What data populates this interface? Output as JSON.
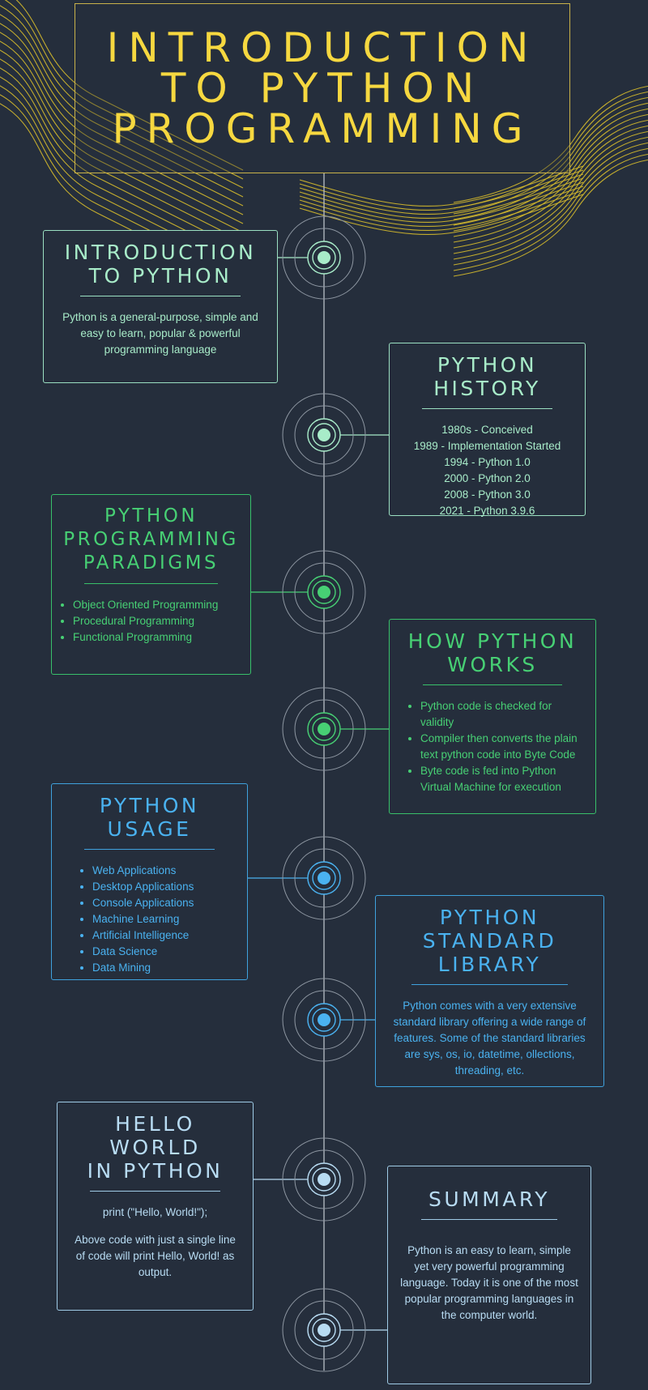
{
  "title": {
    "line1": "INTRODUCTION",
    "line2": "TO PYTHON",
    "line3": "PROGRAMMING"
  },
  "colors": {
    "background": "#252e3c",
    "title": "#f6d840",
    "light_green": "#a8ecc9",
    "green": "#47d074",
    "blue": "#4ab2f0",
    "sky": "#b8dcf3"
  },
  "sections": {
    "intro": {
      "title_line1": "INTRODUCTION",
      "title_line2": "TO PYTHON",
      "text": "Python is a general-purpose, simple and easy to learn, popular & powerful programming language"
    },
    "history": {
      "title_line1": "PYTHON",
      "title_line2": "HISTORY",
      "items": [
        "1980s - Conceived",
        "1989 - Implementation Started",
        "1994 - Python 1.0",
        "2000 - Python 2.0",
        "2008 - Python 3.0",
        "2021 - Python 3.9.6"
      ]
    },
    "paradigms": {
      "title_line1": "PYTHON",
      "title_line2": "PROGRAMMING",
      "title_line3": "PARADIGMS",
      "items": [
        "Object Oriented Programming",
        "Procedural Programming",
        "Functional Programming"
      ]
    },
    "works": {
      "title_line1": "HOW PYTHON",
      "title_line2": "WORKS",
      "items": [
        "Python code is checked for validity",
        "Compiler then converts the plain text python code into Byte Code",
        "Byte code is fed into Python Virtual Machine for execution"
      ]
    },
    "usage": {
      "title_line1": "PYTHON",
      "title_line2": "USAGE",
      "items": [
        "Web Applications",
        "Desktop Applications",
        "Console Applications",
        "Machine Learning",
        "Artificial Intelligence",
        "Data Science",
        "Data Mining"
      ]
    },
    "stdlib": {
      "title_line1": "PYTHON",
      "title_line2": "STANDARD",
      "title_line3": "LIBRARY",
      "text": "Python comes with a very extensive standard library offering a wide range of features. Some of the standard libraries are sys, os, io, datetime,  ollections, threading, etc."
    },
    "hello": {
      "title_line1": "HELLO",
      "title_line2": "WORLD",
      "title_line3": "IN PYTHON",
      "code": "print (\"Hello, World!\");",
      "text": "Above code with just a single line of code will print Hello, World! as output."
    },
    "summary": {
      "title": "SUMMARY",
      "text": "Python is an easy to learn, simple yet very powerful programming language. Today it is one of the most popular programming languages in the computer world."
    }
  }
}
